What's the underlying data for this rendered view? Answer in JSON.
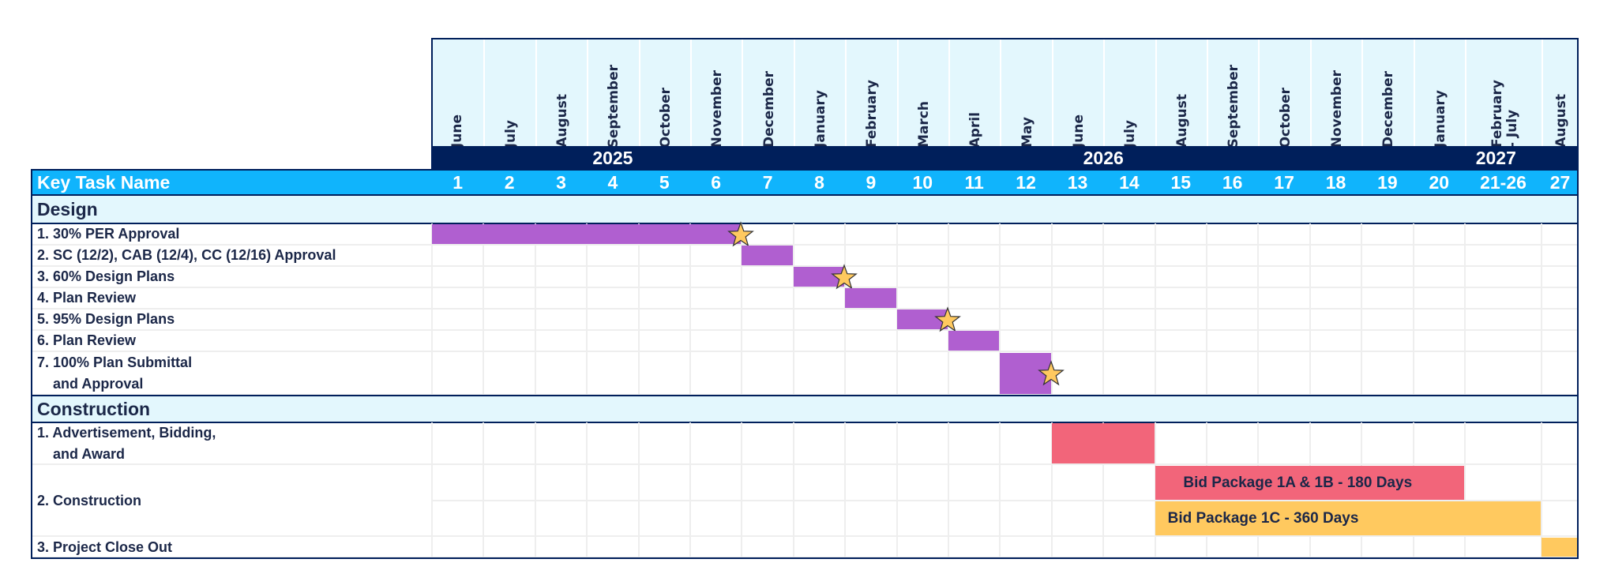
{
  "chart_data": {
    "type": "gantt",
    "header": {
      "key_task_label": "Key Task Name",
      "columns": [
        {
          "month": "June",
          "period": "1"
        },
        {
          "month": "July",
          "period": "2"
        },
        {
          "month": "August",
          "period": "3"
        },
        {
          "month": "September",
          "period": "4"
        },
        {
          "month": "October",
          "period": "5"
        },
        {
          "month": "November",
          "period": "6"
        },
        {
          "month": "December",
          "period": "7"
        },
        {
          "month": "January",
          "period": "8"
        },
        {
          "month": "February",
          "period": "9"
        },
        {
          "month": "March",
          "period": "10"
        },
        {
          "month": "April",
          "period": "11"
        },
        {
          "month": "May",
          "period": "12"
        },
        {
          "month": "June",
          "period": "13"
        },
        {
          "month": "July",
          "period": "14"
        },
        {
          "month": "August",
          "period": "15"
        },
        {
          "month": "September",
          "period": "16"
        },
        {
          "month": "October",
          "period": "17"
        },
        {
          "month": "November",
          "period": "18"
        },
        {
          "month": "December",
          "period": "19"
        },
        {
          "month": "January",
          "period": "20"
        },
        {
          "month": "February\n- July",
          "period": "21-26"
        },
        {
          "month": "August",
          "period": "27"
        }
      ],
      "years": [
        {
          "label": "2025",
          "from": "1",
          "to": "7"
        },
        {
          "label": "2026",
          "from": "8",
          "to": "19"
        },
        {
          "label": "2027",
          "from": "20",
          "to": "27"
        }
      ]
    },
    "sections": [
      {
        "title": "Design",
        "tasks": [
          {
            "label": "1. 30% PER Approval",
            "bars": [
              {
                "start": "1",
                "end": "6",
                "color": "#b05fd0",
                "milestone": true
              }
            ]
          },
          {
            "label": "2. SC (12/2), CAB (12/4), CC (12/16) Approval",
            "bars": [
              {
                "start": "7",
                "end": "7",
                "color": "#b05fd0",
                "milestone": false
              }
            ]
          },
          {
            "label": "3. 60% Design Plans",
            "bars": [
              {
                "start": "8",
                "end": "8",
                "color": "#b05fd0",
                "milestone": true
              }
            ]
          },
          {
            "label": "4. Plan Review",
            "bars": [
              {
                "start": "9",
                "end": "9",
                "color": "#b05fd0",
                "milestone": false
              }
            ]
          },
          {
            "label": "5. 95% Design Plans",
            "bars": [
              {
                "start": "10",
                "end": "10",
                "color": "#b05fd0",
                "milestone": true
              }
            ]
          },
          {
            "label": "6. Plan Review",
            "bars": [
              {
                "start": "11",
                "end": "11",
                "color": "#b05fd0",
                "milestone": false
              }
            ]
          },
          {
            "label": "7. 100% Plan Submittal\n    and Approval",
            "bars": [
              {
                "start": "12",
                "end": "12",
                "color": "#b05fd0",
                "milestone": true
              }
            ]
          }
        ]
      },
      {
        "title": "Construction",
        "tasks": [
          {
            "label": "1. Advertisement, Bidding,\n    and Award",
            "bars": [
              {
                "start": "13",
                "end": "14",
                "color": "#f2657a",
                "milestone": false
              }
            ]
          },
          {
            "label": "2. Construction",
            "bars": [
              {
                "start": "15",
                "end": "20",
                "color": "#f2657a",
                "label": "Bid Package 1A & 1B - 180 Days",
                "milestone": false
              },
              {
                "start": "15",
                "end": "21-26",
                "color": "#ffc95f",
                "label": "Bid Package 1C - 360 Days",
                "milestone": false
              }
            ]
          },
          {
            "label": "3. Project Close Out",
            "bars": [
              {
                "start": "27",
                "end": "27",
                "color": "#ffc95f",
                "milestone": false
              }
            ]
          }
        ]
      }
    ],
    "colors": {
      "navy": "#001f5b",
      "header_blue": "#10b4fc",
      "light_cyan": "#e3f7fd",
      "design_bar": "#b05fd0",
      "construction_bar": "#f2657a",
      "bid_1c_bar": "#ffc95f",
      "milestone_star": "#ffc95f"
    },
    "icons": {
      "milestone": "star-icon"
    }
  }
}
